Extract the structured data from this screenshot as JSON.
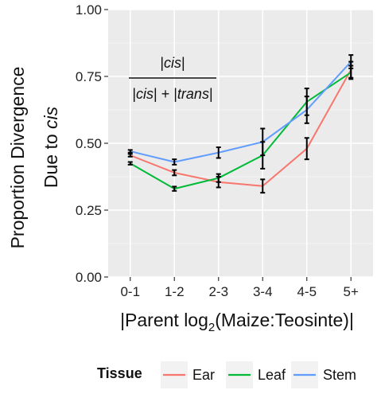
{
  "chart_data": {
    "type": "line",
    "categories": [
      "0-1",
      "1-2",
      "2-3",
      "3-4",
      "4-5",
      "5+"
    ],
    "ylim": [
      0,
      1
    ],
    "yticks": [
      "0.00",
      "0.25",
      "0.50",
      "0.75",
      "1.00"
    ],
    "ylabel": {
      "line1": "Proportion Divergence",
      "line2_prefix": "Due to ",
      "line2_italic": "cis"
    },
    "xlabel": {
      "prefix": "|Parent log",
      "sub": "2",
      "suffix": "(Maize:Teosinte)|"
    },
    "grid": true,
    "legend": {
      "title": "Tissue",
      "placement": "bottom"
    },
    "annotation": {
      "numerator": {
        "pre": "|",
        "italic": "cis",
        "post": "|"
      },
      "denominator": {
        "pre": "|",
        "italic1": "cis",
        "mid": "| + |",
        "italic2": "trans",
        "post": "|"
      }
    },
    "series": [
      {
        "name": "Ear",
        "color": "#F8766D",
        "values": [
          0.455,
          0.39,
          0.355,
          0.34,
          0.48,
          0.775
        ],
        "err": [
          0.005,
          0.01,
          0.02,
          0.025,
          0.04,
          0.03
        ]
      },
      {
        "name": "Leaf",
        "color": "#00BA38",
        "values": [
          0.425,
          0.33,
          0.37,
          0.455,
          0.655,
          0.765
        ],
        "err": [
          0.005,
          0.008,
          0.015,
          0.05,
          0.05,
          0.025
        ]
      },
      {
        "name": "Stem",
        "color": "#619CFF",
        "values": [
          0.47,
          0.43,
          0.465,
          0.505,
          0.625,
          0.805
        ],
        "err": [
          0.005,
          0.01,
          0.02,
          0.05,
          0.05,
          0.025
        ]
      }
    ]
  }
}
